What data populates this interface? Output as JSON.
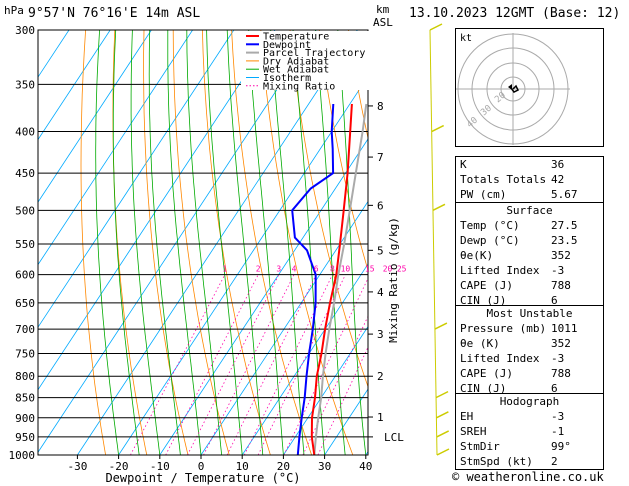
{
  "header": {
    "hpa": "hPa",
    "location": "9°57'N 76°16'E 14m ASL",
    "km": "km",
    "asl": "ASL",
    "datetime": "13.10.2023 12GMT (Base: 12)",
    "copyright": "© weatheronline.co.uk"
  },
  "chart_data": {
    "type": "skew-t log-p",
    "xlabel": "Dewpoint / Temperature (°C)",
    "ylabel_right": "Mixing Ratio (g/kg)",
    "pressure_ticks": [
      300,
      350,
      400,
      450,
      500,
      550,
      600,
      650,
      700,
      750,
      800,
      850,
      900,
      950,
      1000
    ],
    "temp_ticks": [
      -30,
      -20,
      -10,
      0,
      10,
      20,
      30,
      40
    ],
    "km_ticks": [
      {
        "label": "8",
        "p": 372
      },
      {
        "label": "7",
        "p": 430
      },
      {
        "label": "6",
        "p": 493
      },
      {
        "label": "5",
        "p": 560
      },
      {
        "label": "4",
        "p": 630
      },
      {
        "label": "3",
        "p": 710
      },
      {
        "label": "2",
        "p": 800
      },
      {
        "label": "1",
        "p": 898
      },
      {
        "label": "LCL",
        "p": 950
      }
    ],
    "mixing_ratio_labels": [
      "1",
      "2",
      "3",
      "4",
      "6",
      "8",
      "10",
      "15",
      "20",
      "25"
    ],
    "mixing_ratio_values": [
      1,
      2,
      3,
      4,
      6,
      8,
      10,
      15,
      20,
      25
    ],
    "legend": [
      "Temperature",
      "Dewpoint",
      "Parcel Trajectory",
      "Dry Adiabat",
      "Wet Adiabat",
      "Isotherm",
      "Mixing Ratio"
    ],
    "colors": {
      "temperature": "#ff0000",
      "dewpoint": "#0000ff",
      "parcel": "#aaaaaa",
      "dry_adiabat": "#ff8800",
      "wet_adiabat": "#00aa00",
      "isotherm": "#00aaff",
      "mixing_ratio": "#ff00aa",
      "wind": "#cccc00"
    },
    "temperature": [
      [
        1000,
        27.5
      ],
      [
        950,
        24
      ],
      [
        900,
        21
      ],
      [
        850,
        18.5
      ],
      [
        800,
        15.5
      ],
      [
        750,
        13
      ],
      [
        700,
        10
      ],
      [
        650,
        7
      ],
      [
        600,
        4
      ],
      [
        550,
        0
      ],
      [
        500,
        -4.5
      ],
      [
        450,
        -9.5
      ],
      [
        400,
        -15.5
      ],
      [
        370,
        -19.5
      ]
    ],
    "dewpoint": [
      [
        1000,
        23.5
      ],
      [
        950,
        21
      ],
      [
        900,
        18.5
      ],
      [
        850,
        16
      ],
      [
        800,
        13
      ],
      [
        750,
        10
      ],
      [
        700,
        7
      ],
      [
        650,
        3.5
      ],
      [
        600,
        -1
      ],
      [
        560,
        -7
      ],
      [
        540,
        -12
      ],
      [
        500,
        -17
      ],
      [
        470,
        -16
      ],
      [
        450,
        -13
      ],
      [
        420,
        -17
      ],
      [
        400,
        -20
      ],
      [
        370,
        -24
      ]
    ],
    "parcel": [
      [
        1000,
        27.5
      ],
      [
        950,
        25
      ],
      [
        900,
        22.5
      ],
      [
        850,
        20
      ],
      [
        800,
        17
      ],
      [
        750,
        14
      ],
      [
        700,
        11
      ],
      [
        650,
        8
      ],
      [
        600,
        4.5
      ],
      [
        550,
        1
      ],
      [
        500,
        -3
      ],
      [
        450,
        -7.5
      ],
      [
        400,
        -12.5
      ],
      [
        370,
        -16
      ]
    ],
    "wind_pressures": [
      300,
      400,
      500,
      700,
      850,
      900,
      950,
      1000
    ]
  },
  "hodograph": {
    "label": "kt",
    "rings": [
      "40",
      "30",
      "20"
    ]
  },
  "indices": [
    {
      "k": "K",
      "v": "36"
    },
    {
      "k": "Totals Totals",
      "v": "42"
    },
    {
      "k": "PW (cm)",
      "v": "5.67"
    }
  ],
  "surface": {
    "title": "Surface",
    "rows": [
      {
        "k": "Temp (°C)",
        "v": "27.5"
      },
      {
        "k": "Dewp (°C)",
        "v": "23.5"
      },
      {
        "k": "θe(K)",
        "v": "352"
      },
      {
        "k": "Lifted Index",
        "v": "-3"
      },
      {
        "k": "CAPE (J)",
        "v": "788"
      },
      {
        "k": "CIN (J)",
        "v": "6"
      }
    ]
  },
  "unstable": {
    "title": "Most Unstable",
    "rows": [
      {
        "k": "Pressure (mb)",
        "v": "1011"
      },
      {
        "k": "θe (K)",
        "v": "352"
      },
      {
        "k": "Lifted Index",
        "v": "-3"
      },
      {
        "k": "CAPE (J)",
        "v": "788"
      },
      {
        "k": "CIN (J)",
        "v": "6"
      }
    ]
  },
  "hodo_table": {
    "title": "Hodograph",
    "rows": [
      {
        "k": "EH",
        "v": "-3"
      },
      {
        "k": "SREH",
        "v": "-1"
      },
      {
        "k": "StmDir",
        "v": "99°"
      },
      {
        "k": "StmSpd (kt)",
        "v": "2"
      }
    ]
  }
}
